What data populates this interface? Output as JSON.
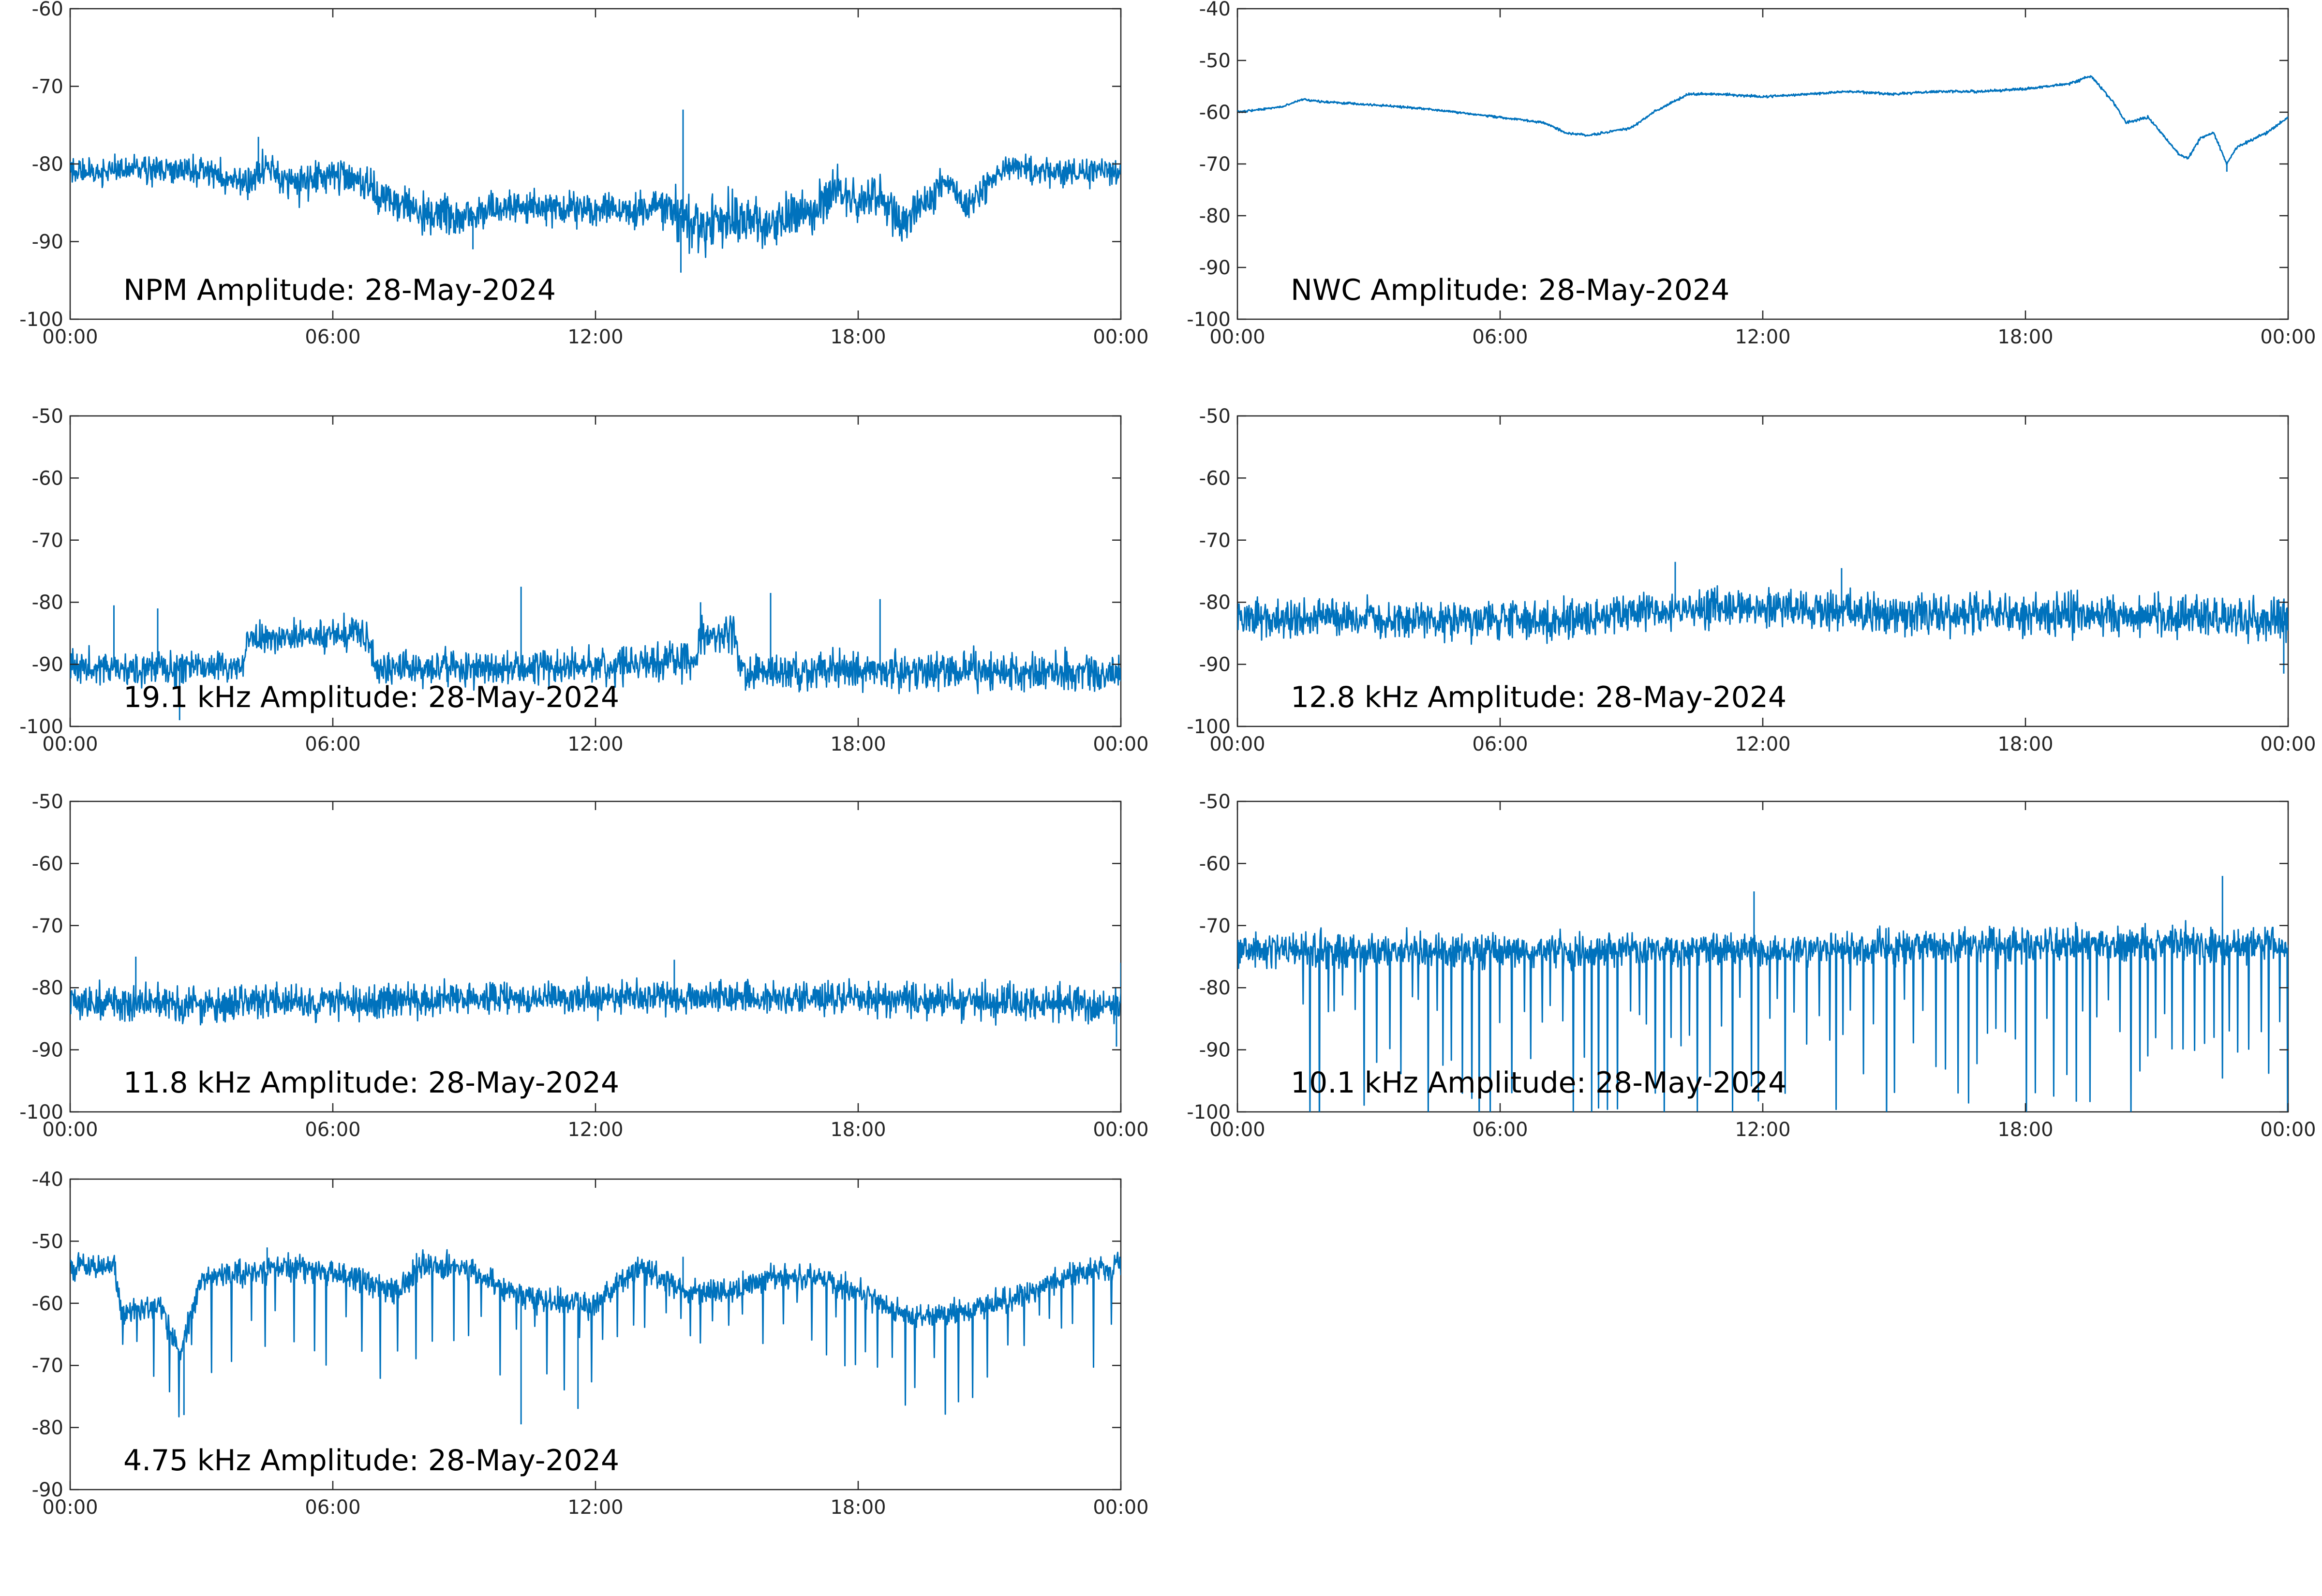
{
  "figure": {
    "line_color": "#0072BD",
    "axes_color": "#262626",
    "background": "#ffffff"
  },
  "chart_data": [
    {
      "type": "line",
      "title": "NPM Amplitude: 28-May-2024",
      "x_ticks": [
        "00:00",
        "06:00",
        "12:00",
        "18:00",
        "00:00"
      ],
      "y_ticks": [
        "-60",
        "-70",
        "-80",
        "-90",
        "-100"
      ],
      "xlim": [
        0,
        24
      ],
      "ylim": [
        -100,
        -60
      ],
      "series": [
        {
          "profile": [
            [
              0,
              -81
            ],
            [
              1,
              -81
            ],
            [
              2,
              -80.5
            ],
            [
              3,
              -81
            ],
            [
              4,
              -82.5
            ],
            [
              4.5,
              -80
            ],
            [
              5,
              -83
            ],
            [
              6,
              -81
            ],
            [
              6.5,
              -82
            ],
            [
              7,
              -84
            ],
            [
              8,
              -86
            ],
            [
              9,
              -87
            ],
            [
              10,
              -85.5
            ],
            [
              12,
              -86
            ],
            [
              13,
              -86
            ],
            [
              13.8,
              -86
            ],
            [
              14.3,
              -88
            ],
            [
              15,
              -87
            ],
            [
              16,
              -88
            ],
            [
              17,
              -86
            ],
            [
              17.5,
              -83
            ],
            [
              18,
              -85
            ],
            [
              18.5,
              -84
            ],
            [
              19,
              -88
            ],
            [
              20,
              -82
            ],
            [
              20.5,
              -86
            ],
            [
              21,
              -82
            ],
            [
              21.5,
              -80
            ],
            [
              22,
              -81
            ],
            [
              24,
              -81
            ]
          ],
          "noise": [
            [
              0,
              5
            ],
            [
              7,
              7
            ],
            [
              13,
              6
            ],
            [
              14,
              10
            ],
            [
              16,
              9
            ],
            [
              20,
              7
            ],
            [
              21.5,
              5
            ],
            [
              24,
              5
            ]
          ],
          "spikes": [
            [
              14,
              -73
            ],
            [
              13.95,
              -94
            ],
            [
              4.3,
              -76.5
            ],
            [
              9.2,
              -91
            ],
            [
              19,
              -90
            ]
          ]
        }
      ]
    },
    {
      "type": "line",
      "title": "NWC Amplitude: 28-May-2024",
      "x_ticks": [
        "00:00",
        "06:00",
        "12:00",
        "18:00",
        "00:00"
      ],
      "y_ticks": [
        "-40",
        "-50",
        "-60",
        "-70",
        "-80",
        "-90",
        "-100"
      ],
      "xlim": [
        0,
        24
      ],
      "ylim": [
        -100,
        -40
      ],
      "series": [
        {
          "profile": [
            [
              0,
              -60
            ],
            [
              1,
              -59
            ],
            [
              1.5,
              -57.5
            ],
            [
              2,
              -58
            ],
            [
              3.5,
              -58.8
            ],
            [
              4.5,
              -59.5
            ],
            [
              6,
              -61
            ],
            [
              7,
              -62
            ],
            [
              7.5,
              -64
            ],
            [
              8,
              -64.5
            ],
            [
              9,
              -63
            ],
            [
              9.5,
              -60
            ],
            [
              10.3,
              -56.5
            ],
            [
              11,
              -56.5
            ],
            [
              12,
              -57
            ],
            [
              13,
              -56.5
            ],
            [
              14,
              -56
            ],
            [
              15,
              -56.5
            ],
            [
              16,
              -56
            ],
            [
              17,
              -56
            ],
            [
              18,
              -55.5
            ],
            [
              19,
              -54.5
            ],
            [
              19.5,
              -53
            ],
            [
              20,
              -58
            ],
            [
              20.3,
              -62
            ],
            [
              20.8,
              -61
            ],
            [
              21.5,
              -68
            ],
            [
              21.7,
              -69
            ],
            [
              22,
              -65
            ],
            [
              22.3,
              -64
            ],
            [
              22.6,
              -70
            ],
            [
              22.8,
              -67
            ],
            [
              23,
              -66
            ],
            [
              23.5,
              -64
            ],
            [
              24,
              -61
            ]
          ],
          "noise": [
            [
              0,
              0.6
            ],
            [
              24,
              0.8
            ]
          ],
          "spikes": [
            [
              22.6,
              -71.5
            ]
          ]
        }
      ]
    },
    {
      "type": "line",
      "title": "19.1 kHz Amplitude: 28-May-2024",
      "x_ticks": [
        "00:00",
        "06:00",
        "12:00",
        "18:00",
        "00:00"
      ],
      "y_ticks": [
        "-50",
        "-60",
        "-70",
        "-80",
        "-90",
        "-100"
      ],
      "xlim": [
        0,
        24
      ],
      "ylim": [
        -100,
        -50
      ],
      "series": [
        {
          "profile": [
            [
              0,
              -90.5
            ],
            [
              3.95,
              -90.5
            ],
            [
              4.05,
              -86
            ],
            [
              5.5,
              -85.5
            ],
            [
              6.8,
              -85
            ],
            [
              6.95,
              -90.5
            ],
            [
              12,
              -90.5
            ],
            [
              14.3,
              -89
            ],
            [
              14.4,
              -85
            ],
            [
              15.2,
              -85
            ],
            [
              15.3,
              -91
            ],
            [
              18,
              -91
            ],
            [
              24,
              -91.5
            ]
          ],
          "noise": [
            [
              0,
              8
            ],
            [
              4,
              7
            ],
            [
              7,
              8
            ],
            [
              15,
              9
            ],
            [
              24,
              9
            ]
          ],
          "spikes": [
            [
              1,
              -80.5
            ],
            [
              2,
              -81
            ],
            [
              2.5,
              -99
            ],
            [
              10.3,
              -77.5
            ],
            [
              16,
              -78.5
            ],
            [
              18.5,
              -79.5
            ],
            [
              14.4,
              -80
            ]
          ]
        }
      ]
    },
    {
      "type": "line",
      "title": "12.8 kHz Amplitude: 28-May-2024",
      "x_ticks": [
        "00:00",
        "06:00",
        "12:00",
        "18:00",
        "00:00"
      ],
      "y_ticks": [
        "-50",
        "-60",
        "-70",
        "-80",
        "-90",
        "-100"
      ],
      "xlim": [
        0,
        24
      ],
      "ylim": [
        -100,
        -50
      ],
      "series": [
        {
          "profile": [
            [
              0,
              -82.5
            ],
            [
              5,
              -83
            ],
            [
              8,
              -82.5
            ],
            [
              10,
              -81
            ],
            [
              12,
              -81
            ],
            [
              14,
              -81.5
            ],
            [
              16,
              -82
            ],
            [
              18,
              -82
            ],
            [
              20,
              -82
            ],
            [
              22,
              -82
            ],
            [
              23.5,
              -83
            ],
            [
              24,
              -83
            ]
          ],
          "noise": [
            [
              0,
              9
            ],
            [
              12,
              9
            ],
            [
              23.5,
              10
            ],
            [
              24,
              12
            ]
          ],
          "spikes": [
            [
              10,
              -73.5
            ],
            [
              13.8,
              -74.5
            ],
            [
              23.9,
              -91.5
            ]
          ]
        }
      ]
    },
    {
      "type": "line",
      "title": "11.8 kHz Amplitude: 28-May-2024",
      "x_ticks": [
        "00:00",
        "06:00",
        "12:00",
        "18:00",
        "00:00"
      ],
      "y_ticks": [
        "-50",
        "-60",
        "-70",
        "-80",
        "-90",
        "-100"
      ],
      "xlim": [
        0,
        24
      ],
      "ylim": [
        -100,
        -50
      ],
      "series": [
        {
          "profile": [
            [
              0,
              -82.5
            ],
            [
              4,
              -82.5
            ],
            [
              8,
              -82
            ],
            [
              12,
              -81.5
            ],
            [
              16,
              -81.5
            ],
            [
              20,
              -82
            ],
            [
              23.5,
              -83
            ],
            [
              24,
              -82.5
            ]
          ],
          "noise": [
            [
              0,
              8
            ],
            [
              24,
              8
            ]
          ],
          "spikes": [
            [
              1.5,
              -75
            ],
            [
              13.8,
              -75.5
            ],
            [
              23.9,
              -89.5
            ],
            [
              24,
              -76
            ]
          ]
        }
      ]
    },
    {
      "type": "line",
      "title": "10.1 kHz Amplitude: 28-May-2024",
      "x_ticks": [
        "00:00",
        "06:00",
        "12:00",
        "18:00",
        "00:00"
      ],
      "y_ticks": [
        "-50",
        "-60",
        "-70",
        "-80",
        "-90",
        "-100"
      ],
      "xlim": [
        0,
        24
      ],
      "ylim": [
        -100,
        -50
      ],
      "series": [
        {
          "profile": [
            [
              0,
              -74
            ],
            [
              2,
              -74
            ],
            [
              6,
              -74
            ],
            [
              12,
              -74
            ],
            [
              18,
              -73
            ],
            [
              24,
              -73
            ]
          ],
          "noise": [
            [
              0,
              8
            ],
            [
              24,
              8
            ]
          ],
          "dips": {
            "from": 1.5,
            "to": 24,
            "spacing": 0.22,
            "depth_min": 8,
            "depth_max": 28
          },
          "spikes": [
            [
              11.8,
              -64.5
            ],
            [
              22.5,
              -62
            ]
          ]
        }
      ]
    },
    {
      "type": "line",
      "title": "4.75 kHz Amplitude: 28-May-2024",
      "x_ticks": [
        "00:00",
        "06:00",
        "12:00",
        "18:00",
        "00:00"
      ],
      "y_ticks": [
        "-40",
        "-50",
        "-60",
        "-70",
        "-80",
        "-90"
      ],
      "xlim": [
        0,
        24
      ],
      "ylim": [
        -90,
        -40
      ],
      "series": [
        {
          "profile": [
            [
              0,
              -54
            ],
            [
              1,
              -54
            ],
            [
              1.2,
              -62
            ],
            [
              2,
              -60
            ],
            [
              2.5,
              -68
            ],
            [
              3,
              -56
            ],
            [
              4,
              -55
            ],
            [
              5,
              -54
            ],
            [
              6,
              -55
            ],
            [
              7,
              -57
            ],
            [
              7.5,
              -58
            ],
            [
              8,
              -54
            ],
            [
              9,
              -54
            ],
            [
              10,
              -58
            ],
            [
              11,
              -60
            ],
            [
              12,
              -60
            ],
            [
              13,
              -54
            ],
            [
              14,
              -58
            ],
            [
              15,
              -58
            ],
            [
              16,
              -56
            ],
            [
              17,
              -56
            ],
            [
              18,
              -58
            ],
            [
              19,
              -62
            ],
            [
              20,
              -62
            ],
            [
              21,
              -60
            ],
            [
              22,
              -58
            ],
            [
              23,
              -55
            ],
            [
              24,
              -54
            ]
          ],
          "noise": [
            [
              0,
              6
            ],
            [
              24,
              6
            ]
          ],
          "dips": {
            "from": 1.2,
            "to": 23.8,
            "spacing": 0.35,
            "depth_min": 3,
            "depth_max": 16
          },
          "spikes": [
            [
              2.6,
              -78
            ],
            [
              10.3,
              -79.5
            ],
            [
              11.6,
              -77
            ],
            [
              4.5,
              -51
            ],
            [
              14,
              -52.5
            ]
          ]
        }
      ]
    }
  ]
}
